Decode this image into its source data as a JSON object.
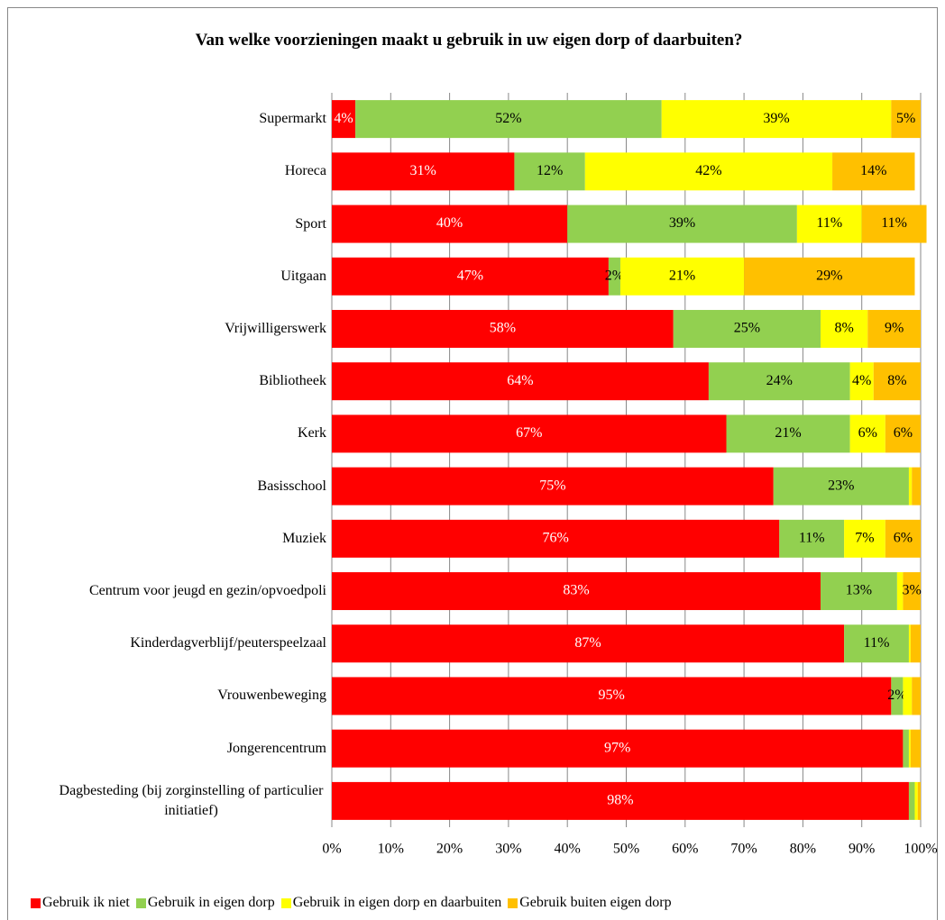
{
  "chart_data": {
    "type": "stacked_barh",
    "title": "Van welke voorzieningen maakt u gebruik in uw eigen dorp of daarbuiten?",
    "categories": [
      "Supermarkt",
      "Horeca",
      "Sport",
      "Uitgaan",
      "Vrijwilligerswerk",
      "Bibliotheek",
      "Kerk",
      "Basisschool",
      "Muziek",
      "Centrum voor jeugd en gezin/opvoedpoli",
      "Kinderdagverblijf/peuterspeelzaal",
      "Vrouwenbeweging",
      "Jongerencentrum",
      "Dagbesteding (bij zorginstelling of particulier initiatief)"
    ],
    "series": [
      {
        "name": "Gebruik ik niet",
        "color": "#ff0000",
        "label_color": "#ffffff",
        "values": [
          4,
          31,
          40,
          47,
          58,
          64,
          67,
          75,
          76,
          83,
          87,
          95,
          97,
          98
        ],
        "value_labels": [
          "4%",
          "31%",
          "40%",
          "47%",
          "58%",
          "64%",
          "67%",
          "75%",
          "76%",
          "83%",
          "87%",
          "95%",
          "97%",
          "98%"
        ]
      },
      {
        "name": "Gebruik in eigen dorp",
        "color": "#92d050",
        "label_color": "#000000",
        "values": [
          52,
          12,
          39,
          2,
          25,
          24,
          21,
          23,
          11,
          13,
          11,
          2,
          1,
          1
        ],
        "value_labels": [
          "52%",
          "12%",
          "39%",
          "2%",
          "25%",
          "24%",
          "21%",
          "23%",
          "11%",
          "13%",
          "11%",
          "2%",
          null,
          null
        ]
      },
      {
        "name": "Gebruik in eigen dorp en daarbuiten",
        "color": "#ffff00",
        "label_color": "#000000",
        "values": [
          39,
          42,
          11,
          21,
          8,
          4,
          6,
          0.5,
          7,
          1,
          0.3,
          1.5,
          0.3,
          0.5
        ],
        "value_labels": [
          "39%",
          "42%",
          "11%",
          "21%",
          "8%",
          "4%",
          "6%",
          null,
          "7%",
          null,
          null,
          null,
          null,
          null
        ]
      },
      {
        "name": "Gebruik buiten eigen dorp",
        "color": "#ffc000",
        "label_color": "#000000",
        "values": [
          5,
          14,
          11,
          29,
          9,
          8,
          6,
          1.5,
          6,
          3,
          1.7,
          1.5,
          1.7,
          0.5
        ],
        "value_labels": [
          "5%",
          "14%",
          "11%",
          "29%",
          "9%",
          "8%",
          "6%",
          null,
          "6%",
          "3%",
          null,
          null,
          null,
          null
        ]
      }
    ],
    "xlim": [
      0,
      100
    ],
    "xticks": [
      {
        "value": 0,
        "label": "0%"
      },
      {
        "value": 10,
        "label": "10%"
      },
      {
        "value": 20,
        "label": "20%"
      },
      {
        "value": 30,
        "label": "30%"
      },
      {
        "value": 40,
        "label": "40%"
      },
      {
        "value": 50,
        "label": "50%"
      },
      {
        "value": 60,
        "label": "60%"
      },
      {
        "value": 70,
        "label": "70%"
      },
      {
        "value": 80,
        "label": "80%"
      },
      {
        "value": 90,
        "label": "90%"
      },
      {
        "value": 100,
        "label": "100%"
      }
    ],
    "grid": true,
    "legend": "bottom"
  }
}
